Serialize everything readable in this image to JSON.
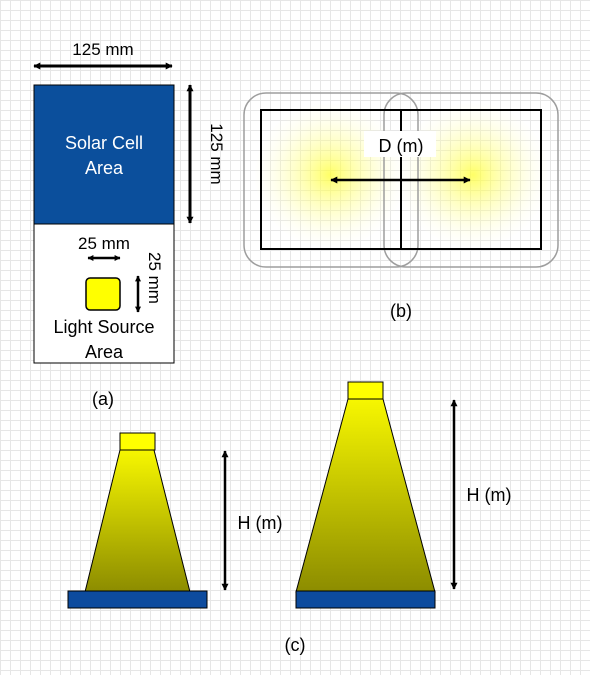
{
  "panel_a": {
    "width_label": "125 mm",
    "height_label": "125 mm",
    "solar_label_line1": "Solar Cell",
    "solar_label_line2": "Area",
    "source_width_label": "25 mm",
    "source_height_label": "25 mm",
    "light_label_line1": "Light Source",
    "light_label_line2": "Area",
    "caption": "(a)"
  },
  "panel_b": {
    "distance_label": "D (m)",
    "caption": "(b)"
  },
  "panel_c": {
    "height_label_small": "H (m)",
    "height_label_large": "H (m)",
    "caption": "(c)"
  },
  "colors": {
    "solar_blue": "#0b4f9c",
    "base_blue": "#0d4b9e",
    "light_yellow": "#ffff00",
    "beam_top": "#f5f500",
    "beam_bottom": "#8c8c00"
  }
}
